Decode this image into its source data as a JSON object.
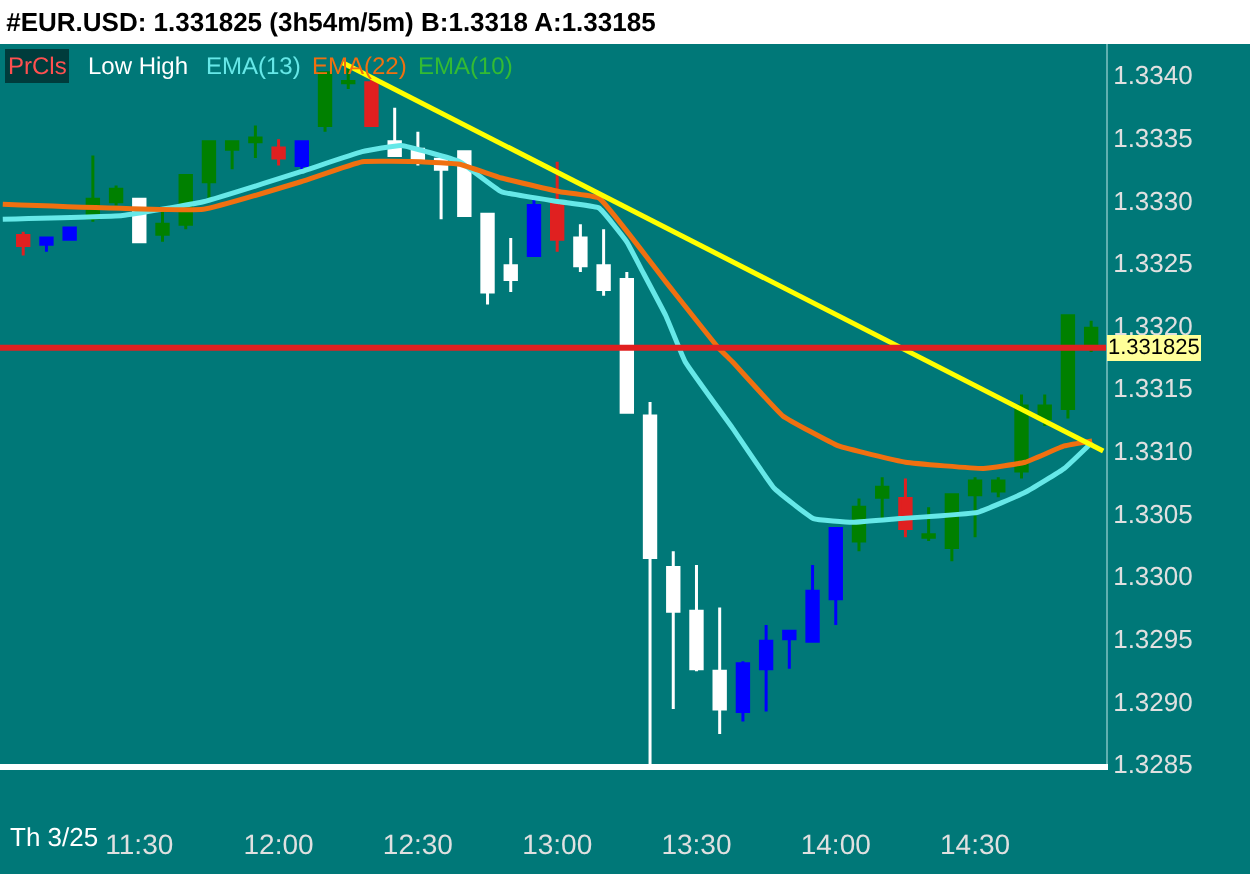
{
  "chart_data": {
    "type": "candlestick",
    "title": "#EUR.USD: 1.331825 (3h54m/5m) B:1.3318 A:1.33185",
    "x": [
      11.0833,
      11.1667,
      11.25,
      11.3333,
      11.4167,
      11.5,
      11.5833,
      11.6667,
      11.75,
      11.8333,
      11.9167,
      12,
      12.0833,
      12.1667,
      12.25,
      12.3333,
      12.4167,
      12.5,
      12.5833,
      12.6667,
      12.75,
      12.8333,
      12.9167,
      13,
      13.0833,
      13.1667,
      13.25,
      13.3333,
      13.4167,
      13.5,
      13.5833,
      13.6667,
      13.75,
      13.8333,
      13.9167,
      14,
      14.0833,
      14.1667,
      14.25,
      14.3333,
      14.4167,
      14.5,
      14.5833,
      14.6667,
      14.75,
      14.8333,
      14.9167
    ],
    "ohlc": [
      [
        1.33272,
        1.33275,
        1.33256,
        1.33264
      ],
      [
        1.33265,
        1.3327,
        1.33259,
        1.3327
      ],
      [
        1.33269,
        1.33278,
        1.33269,
        1.33278
      ],
      [
        1.33286,
        1.33336,
        1.33283,
        1.33301
      ],
      [
        1.33299,
        1.33312,
        1.33296,
        1.33309
      ],
      [
        1.33301,
        1.33301,
        1.33267,
        1.33267
      ],
      [
        1.33273,
        1.33293,
        1.33267,
        1.33281
      ],
      [
        1.33281,
        1.3332,
        1.33277,
        1.3332
      ],
      [
        1.33315,
        1.33347,
        1.33301,
        1.33347
      ],
      [
        1.33341,
        1.33347,
        1.33325,
        1.33347
      ],
      [
        1.33347,
        1.3336,
        1.33334,
        1.3335
      ],
      [
        1.33342,
        1.33349,
        1.33328,
        1.33334
      ],
      [
        1.33328,
        1.33347,
        1.33323,
        1.33347
      ],
      [
        1.3336,
        1.33402,
        1.33355,
        1.33402
      ],
      [
        1.33394,
        1.33405,
        1.33389,
        1.33395
      ],
      [
        1.33394,
        1.33398,
        1.3336,
        1.3336
      ],
      [
        1.33347,
        1.33374,
        1.33336,
        1.33336
      ],
      [
        1.33341,
        1.33355,
        1.33328,
        1.33331
      ],
      [
        1.33333,
        1.33333,
        1.33285,
        1.33325
      ],
      [
        1.33339,
        1.33339,
        1.33288,
        1.33288
      ],
      [
        1.33289,
        1.33289,
        1.33217,
        1.33227
      ],
      [
        1.33248,
        1.3327,
        1.33227,
        1.33237
      ],
      [
        1.33256,
        1.33302,
        1.33256,
        1.33296
      ],
      [
        1.33299,
        1.33331,
        1.33259,
        1.33269
      ],
      [
        1.3327,
        1.33281,
        1.33243,
        1.33248
      ],
      [
        1.33248,
        1.33277,
        1.33224,
        1.33229
      ],
      [
        1.33237,
        1.33243,
        1.33131,
        1.33131
      ],
      [
        1.33128,
        1.33139,
        1.3285,
        1.33015
      ],
      [
        1.33007,
        1.3302,
        1.32894,
        1.32972
      ],
      [
        1.32972,
        1.33009,
        1.32924,
        1.32926
      ],
      [
        1.32924,
        1.32975,
        1.32874,
        1.32894
      ],
      [
        1.32892,
        1.32932,
        1.32884,
        1.3293
      ],
      [
        1.32926,
        1.32961,
        1.32892,
        1.32948
      ],
      [
        1.3295,
        1.32956,
        1.32926,
        1.32956
      ],
      [
        1.32948,
        1.33009,
        1.32948,
        1.32988
      ],
      [
        1.32982,
        1.33039,
        1.32961,
        1.33038
      ],
      [
        1.33028,
        1.33062,
        1.3302,
        1.33055
      ],
      [
        1.33063,
        1.33079,
        1.33046,
        1.33071
      ],
      [
        1.33062,
        1.33078,
        1.33031,
        1.33038
      ],
      [
        1.33031,
        1.33055,
        1.33028,
        1.33033
      ],
      [
        1.33023,
        1.33065,
        1.33012,
        1.33065
      ],
      [
        1.33065,
        1.33079,
        1.33031,
        1.33076
      ],
      [
        1.33068,
        1.33079,
        1.33063,
        1.33076
      ],
      [
        1.33084,
        1.33145,
        1.33078,
        1.33136
      ],
      [
        1.33126,
        1.33145,
        1.3312,
        1.33136
      ],
      [
        1.33134,
        1.33208,
        1.33126,
        1.33208
      ],
      [
        1.33182,
        1.33204,
        1.33179,
        1.33198
      ]
    ],
    "colors": [
      "#e02020",
      "#0000ff",
      "#0000ff",
      "#008000",
      "#008000",
      "#ffffff",
      "#008000",
      "#008000",
      "#008000",
      "#008000",
      "#008000",
      "#e02020",
      "#0000ff",
      "#008000",
      "#008000",
      "#e02020",
      "#ffffff",
      "#ffffff",
      "#ffffff",
      "#ffffff",
      "#ffffff",
      "#ffffff",
      "#0000ff",
      "#e02020",
      "#ffffff",
      "#ffffff",
      "#ffffff",
      "#ffffff",
      "#ffffff",
      "#ffffff",
      "#ffffff",
      "#0000ff",
      "#0000ff",
      "#0000ff",
      "#0000ff",
      "#0000ff",
      "#008000",
      "#008000",
      "#e02020",
      "#008000",
      "#008000",
      "#008000",
      "#008000",
      "#008000",
      "#008000",
      "#008000",
      "#008000"
    ],
    "series": [
      {
        "name": "EMA(13)",
        "type": "line",
        "color": "#66e8e8",
        "x": [
          11.01,
          11.44,
          11.73,
          12.08,
          12.3,
          12.44,
          12.65,
          12.8,
          13.01,
          13.15,
          13.25,
          13.3,
          13.39,
          13.46,
          13.63,
          13.78,
          13.92,
          14.06,
          14.23,
          14.51,
          14.68,
          14.82,
          14.92
        ],
        "values": [
          1.33285,
          1.33288,
          1.33299,
          1.33323,
          1.33339,
          1.33344,
          1.33331,
          1.33307,
          1.33299,
          1.33294,
          1.33267,
          1.33246,
          1.33208,
          1.33171,
          1.33118,
          1.3307,
          1.33046,
          1.33043,
          1.33046,
          1.33051,
          1.33067,
          1.33086,
          1.33107
        ]
      },
      {
        "name": "EMA(22)",
        "type": "line",
        "color": "#f07010",
        "x": [
          11.01,
          11.73,
          12.08,
          12.3,
          12.51,
          12.65,
          12.8,
          13.01,
          13.15,
          13.39,
          13.58,
          13.63,
          13.81,
          14.01,
          14.25,
          14.53,
          14.68,
          14.82,
          14.92
        ],
        "values": [
          1.33297,
          1.33293,
          1.33315,
          1.33331,
          1.33331,
          1.33329,
          1.33318,
          1.33307,
          1.33302,
          1.33235,
          1.33182,
          1.33171,
          1.33128,
          1.33104,
          1.33091,
          1.33086,
          1.33091,
          1.33104,
          1.33108
        ]
      },
      {
        "type": "line",
        "color": "#ffff00",
        "x": [
          12.23,
          14.96
        ],
        "values": [
          1.3341,
          1.331
        ]
      }
    ],
    "ref_lines": [
      {
        "axis": "y",
        "value": 1.331825,
        "label": "1.331825",
        "color": "#e02020"
      }
    ],
    "annotations": [
      "PrCls",
      "Low High",
      "EMA(10)",
      "Th 3/25"
    ],
    "xlim": [
      11.0,
      14.97
    ],
    "xticks": [
      {
        "value": 11.5,
        "label": "11:30"
      },
      {
        "value": 12,
        "label": "12:00"
      },
      {
        "value": 12.5,
        "label": "12:30"
      },
      {
        "value": 13,
        "label": "13:00"
      },
      {
        "value": 13.5,
        "label": "13:30"
      },
      {
        "value": 14,
        "label": "14:00"
      },
      {
        "value": 14.5,
        "label": "14:30"
      }
    ],
    "ylim": [
      1.3285,
      1.33425
    ],
    "yticks": [
      {
        "value": 1.3285,
        "label": "1.3285"
      },
      {
        "value": 1.329,
        "label": "1.3290"
      },
      {
        "value": 1.3295,
        "label": "1.3295"
      },
      {
        "value": 1.33,
        "label": "1.3300"
      },
      {
        "value": 1.3305,
        "label": "1.3305"
      },
      {
        "value": 1.331,
        "label": "1.3310"
      },
      {
        "value": 1.3315,
        "label": "1.3315"
      },
      {
        "value": 1.332,
        "label": "1.3320"
      },
      {
        "value": 1.3325,
        "label": "1.3325"
      },
      {
        "value": 1.333,
        "label": "1.3330"
      },
      {
        "value": 1.3335,
        "label": "1.3335"
      },
      {
        "value": 1.334,
        "label": "1.3340"
      }
    ]
  }
}
